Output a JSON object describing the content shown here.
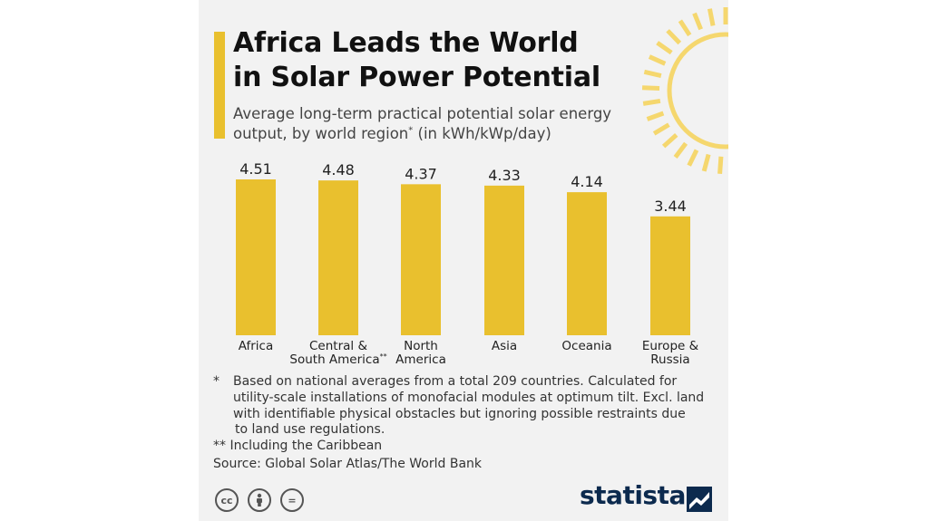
{
  "title": {
    "line1": "Africa Leads the World",
    "line2": "in Solar Power Potential"
  },
  "subtitle": {
    "line1": "Average long-term practical potential solar energy",
    "line2_pre": "output, by world region",
    "line2_mark": "*",
    "line2_post": " (in kWh/kWp/day)"
  },
  "chart_data": {
    "type": "bar",
    "categories": [
      "Africa",
      "Central & South America**",
      "North America",
      "Asia",
      "Oceania",
      "Europe & Russia"
    ],
    "category_lines": [
      [
        "Africa"
      ],
      [
        "Central &",
        "South America**"
      ],
      [
        "North",
        "America"
      ],
      [
        "Asia"
      ],
      [
        "Oceania"
      ],
      [
        "Europe &",
        "Russia"
      ]
    ],
    "values": [
      4.51,
      4.48,
      4.37,
      4.33,
      4.14,
      3.44
    ],
    "value_labels": [
      "4.51",
      "4.48",
      "4.37",
      "4.33",
      "4.14",
      "3.44"
    ],
    "bar_color": "#e9c02e",
    "ylim": [
      0,
      4.51
    ],
    "grid": false
  },
  "footnotes": {
    "star": "*",
    "line1": "Based on national averages from a total 209 countries. Calculated for",
    "line2": "utility-scale installations of monofacial modules at optimum tilt. Excl. land",
    "line3": "with identifiable physical obstacles but ignoring possible restraints due",
    "line4": "to land use regulations.",
    "line5": "** Including the Caribbean"
  },
  "source": "Source: Global Solar Atlas/The World Bank",
  "license": {
    "cc": "cc",
    "nd": "="
  },
  "brand": "statista",
  "colors": {
    "accent": "#e9c02e",
    "sun": "#f5d76e",
    "brand": "#0c2a4e",
    "background": "#f2f2f2"
  },
  "icons": [
    "sun-icon",
    "cc-icon",
    "by-icon",
    "nd-icon",
    "statista-logo-icon"
  ]
}
